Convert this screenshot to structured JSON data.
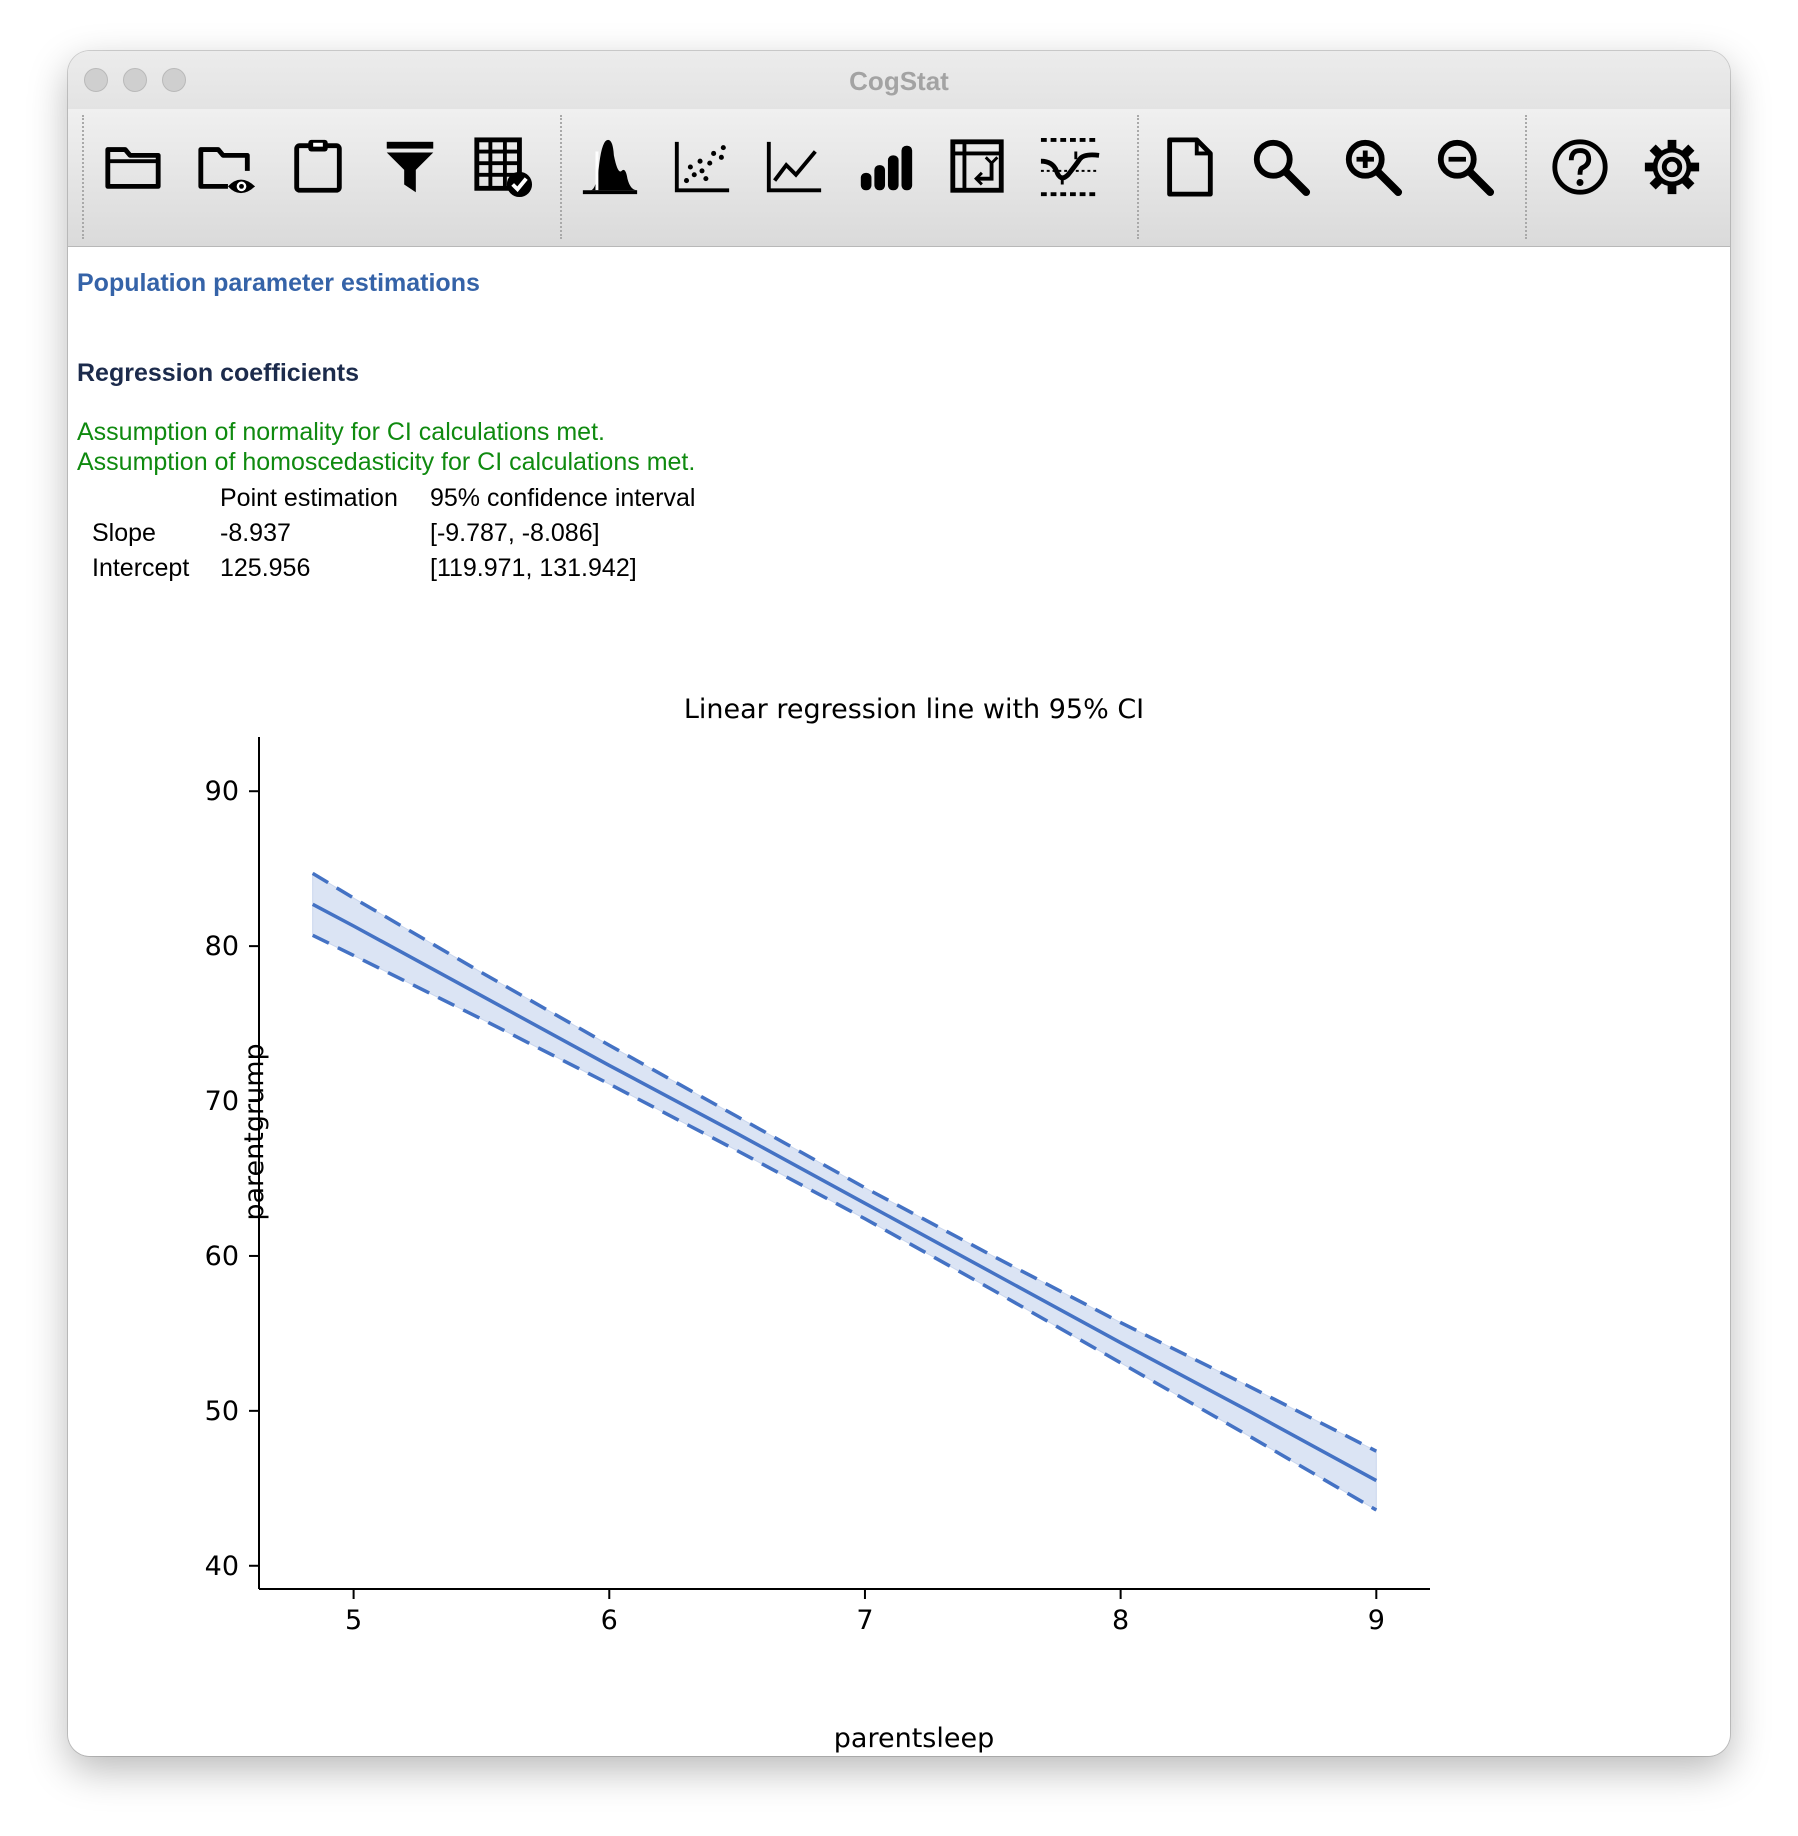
{
  "window": {
    "title": "CogStat"
  },
  "toolbar": {
    "buttons": [
      {
        "id": "open-data",
        "icon": "folder-icon"
      },
      {
        "id": "view-data",
        "icon": "folder-eye-icon"
      },
      {
        "id": "paste-data",
        "icon": "clipboard-icon"
      },
      {
        "id": "filter",
        "icon": "filter-icon"
      },
      {
        "id": "data-check",
        "icon": "table-check-icon"
      },
      {
        "id": "explore-variable",
        "icon": "distribution-icon"
      },
      {
        "id": "explore-relation",
        "icon": "scatter-icon"
      },
      {
        "id": "compare-repeated",
        "icon": "line-chart-icon"
      },
      {
        "id": "compare-groups",
        "icon": "bar-chart-icon"
      },
      {
        "id": "pivot-table",
        "icon": "pivot-table-icon"
      },
      {
        "id": "reliability",
        "icon": "reliability-icon"
      },
      {
        "id": "new-result",
        "icon": "document-icon"
      },
      {
        "id": "find",
        "icon": "search-icon"
      },
      {
        "id": "zoom-in",
        "icon": "zoom-in-icon"
      },
      {
        "id": "zoom-out",
        "icon": "zoom-out-icon"
      },
      {
        "id": "help",
        "icon": "help-icon"
      },
      {
        "id": "preferences",
        "icon": "gear-icon"
      }
    ]
  },
  "results": {
    "heading": "Population parameter estimations",
    "subheading": "Regression coefficients",
    "assumptions": [
      "Assumption of normality for CI calculations met.",
      "Assumption of homoscedasticity for CI calculations met."
    ],
    "table": {
      "headers": [
        "",
        "Point estimation",
        "95% confidence interval"
      ],
      "rows": [
        [
          "Slope",
          "-8.937",
          "[-9.787, -8.086]"
        ],
        [
          "Intercept",
          "125.956",
          "[119.971, 131.942]"
        ]
      ]
    }
  },
  "colors": {
    "line": "#4472c4",
    "band": "#dbe4f4",
    "ok_text": "#0f8a0f",
    "heading": "#3563a8"
  },
  "chart_data": {
    "type": "line",
    "title": "Linear regression line with 95% CI",
    "xlabel": "parentsleep",
    "ylabel": "parentgrump",
    "xlim": [
      4.63,
      9.21
    ],
    "ylim": [
      38.5,
      93.5
    ],
    "xticks": [
      5,
      6,
      7,
      8,
      9
    ],
    "yticks": [
      40,
      50,
      60,
      70,
      80,
      90
    ],
    "series": [
      {
        "x": [
          4.84,
          5.0,
          5.5,
          6.0,
          6.5,
          7.0,
          7.5,
          8.0,
          8.5,
          9.0
        ],
        "fit": [
          82.7,
          81.3,
          76.8,
          72.3,
          67.9,
          63.4,
          58.9,
          54.4,
          50.0,
          45.5
        ],
        "upper": [
          84.7,
          83.1,
          78.3,
          73.6,
          69.0,
          64.4,
          60.0,
          55.7,
          51.6,
          47.4
        ],
        "lower": [
          80.7,
          79.4,
          75.3,
          71.1,
          66.8,
          62.4,
          57.8,
          53.1,
          48.4,
          43.6
        ]
      }
    ]
  }
}
